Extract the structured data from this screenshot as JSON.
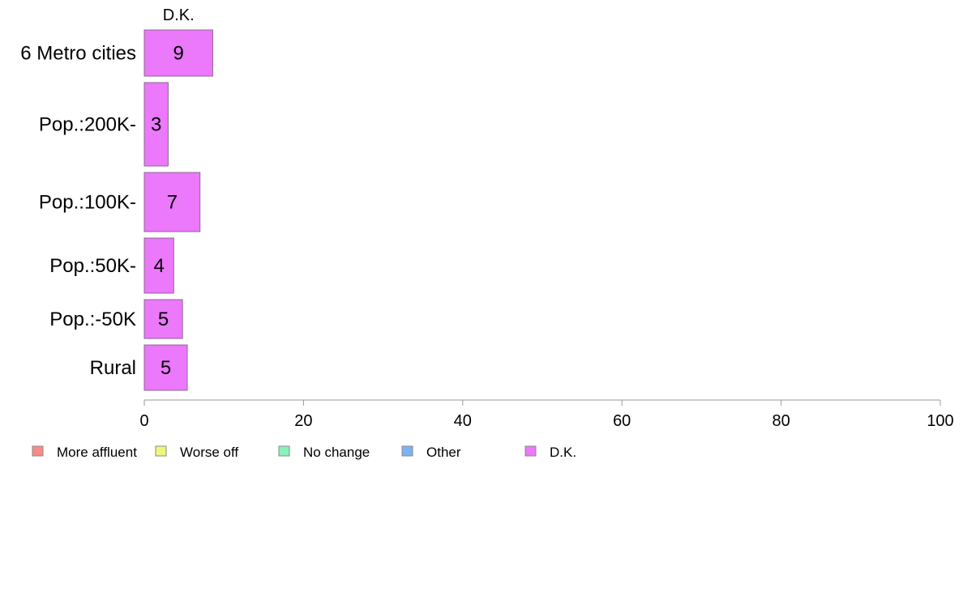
{
  "chart_data": {
    "type": "bar",
    "orientation": "horizontal",
    "stacked": true,
    "categories": [
      "6 Metro cities",
      "Pop.:200K-",
      "Pop.:100K-",
      "Pop.:50K-",
      "Pop.:-50K",
      "Rural"
    ],
    "series": [
      {
        "name": "More affluent",
        "color": "#f88a8a",
        "values": [
          null,
          null,
          null,
          null,
          null,
          null
        ]
      },
      {
        "name": "Worse off",
        "color": "#eef77a",
        "values": [
          null,
          null,
          null,
          null,
          null,
          null
        ]
      },
      {
        "name": "No change",
        "color": "#84f4b8",
        "values": [
          null,
          null,
          null,
          null,
          null,
          null
        ]
      },
      {
        "name": "Other",
        "color": "#7ab4f5",
        "values": [
          null,
          null,
          null,
          null,
          null,
          null
        ]
      },
      {
        "name": "D.K.",
        "color": "#ec78fb",
        "values": [
          8.6,
          3.0,
          7.0,
          3.7,
          4.8,
          5.4
        ]
      }
    ],
    "data_labels": [
      "9",
      "3",
      "7",
      "4",
      "5",
      "5"
    ],
    "series_header": "D.K.",
    "xlim": [
      0,
      100
    ],
    "xticks": [
      "0",
      "20",
      "40",
      "60",
      "80",
      "100"
    ],
    "grid": false,
    "legend_position": "bottom",
    "title": "",
    "xlabel": "",
    "ylabel": ""
  }
}
